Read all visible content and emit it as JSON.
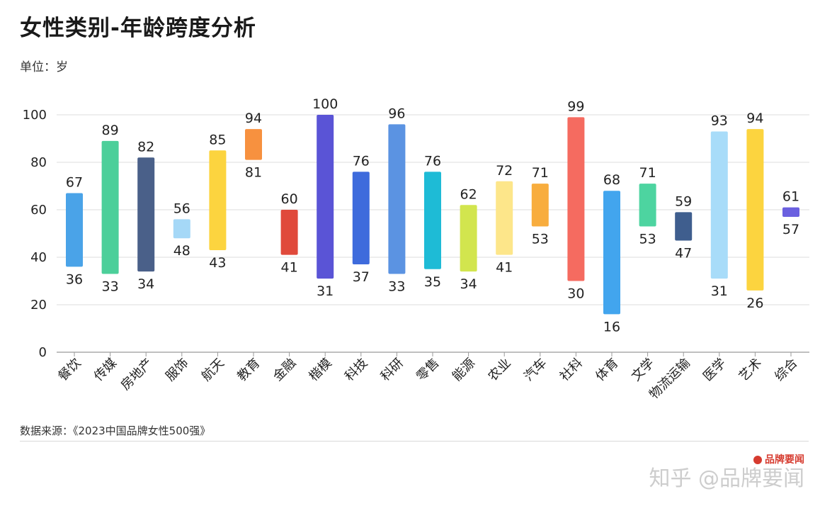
{
  "header": {
    "title": "女性类别-年龄跨度分析",
    "unit": "单位：岁"
  },
  "footer": {
    "source": "数据来源：《2023中国品牌女性500强》",
    "watermark": "知乎 @品牌要闻",
    "brand_logo": "品牌要闻"
  },
  "chart_data": {
    "type": "bar",
    "subtype": "floating-range",
    "title": "女性类别-年龄跨度分析",
    "ylabel": "单位：岁",
    "ylim": [
      0,
      100
    ],
    "yticks": [
      0,
      20,
      40,
      60,
      80,
      100
    ],
    "grid": true,
    "categories": [
      "餐饮",
      "传媒",
      "房地产",
      "服饰",
      "航天",
      "教育",
      "金融",
      "楷模",
      "科技",
      "科研",
      "零售",
      "能源",
      "农业",
      "汽车",
      "社科",
      "体育",
      "文学",
      "物流运输",
      "医学",
      "艺术",
      "综合"
    ],
    "min": [
      36,
      33,
      34,
      48,
      43,
      81,
      41,
      31,
      37,
      33,
      35,
      34,
      41,
      53,
      30,
      16,
      53,
      47,
      31,
      26,
      57
    ],
    "max": [
      67,
      89,
      82,
      56,
      85,
      94,
      60,
      100,
      76,
      96,
      76,
      62,
      72,
      71,
      99,
      68,
      71,
      59,
      93,
      94,
      61
    ],
    "colors": [
      "#4aa3e8",
      "#4ccf9a",
      "#4a6089",
      "#a5d8f7",
      "#fcd43f",
      "#f7913f",
      "#e0493b",
      "#5a54d6",
      "#3e6bdc",
      "#5b93e2",
      "#1ebbd6",
      "#d2e54e",
      "#fde68a",
      "#f8ad3e",
      "#f56b60",
      "#42a5ee",
      "#4dd4a0",
      "#3f5e8e",
      "#a8dcf9",
      "#fcd43f",
      "#6b60e0"
    ]
  }
}
